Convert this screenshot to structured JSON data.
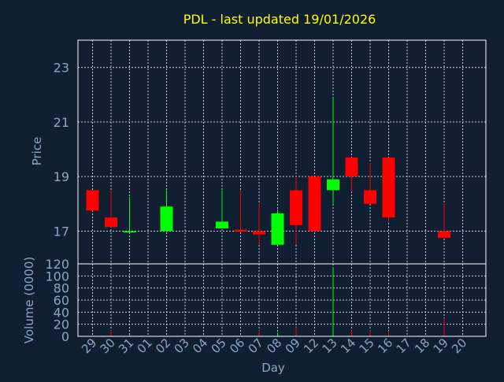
{
  "colors": {
    "background": "#0f1e30",
    "frame": "#ffffff",
    "grid": "#c8c8c8",
    "axis_text": "#8aa6c8",
    "title": "#ffff00",
    "up": "#00ff00",
    "down": "#ff0000"
  },
  "chart_data": [
    {
      "type": "candlestick",
      "title": "PDL - last updated 19/01/2026",
      "ylabel": "Price",
      "ylim": [
        15.8,
        24.0
      ],
      "yticks": [
        17,
        19,
        21,
        23
      ],
      "grid": true,
      "categories": [
        "29",
        "30",
        "31",
        "01",
        "02",
        "03",
        "04",
        "05",
        "06",
        "07",
        "08",
        "09",
        "12",
        "13",
        "14",
        "15",
        "16",
        "17",
        "18",
        "19",
        "20"
      ],
      "candles": [
        {
          "day": "29",
          "open": 18.5,
          "high": 18.5,
          "low": 17.75,
          "close": 17.75
        },
        {
          "day": "30",
          "open": 17.5,
          "high": 18.5,
          "low": 17.15,
          "close": 17.15
        },
        {
          "day": "31",
          "open": 16.95,
          "high": 18.25,
          "low": 16.95,
          "close": 17.0
        },
        {
          "day": "02",
          "open": 17.0,
          "high": 18.5,
          "low": 17.0,
          "close": 17.9
        },
        {
          "day": "05",
          "open": 17.1,
          "high": 18.5,
          "low": 17.1,
          "close": 17.35
        },
        {
          "day": "06",
          "open": 17.05,
          "high": 18.5,
          "low": 16.95,
          "close": 16.98
        },
        {
          "day": "07",
          "open": 17.0,
          "high": 18.0,
          "low": 16.5,
          "close": 16.88
        },
        {
          "day": "08",
          "open": 16.5,
          "high": 17.8,
          "low": 16.5,
          "close": 17.65
        },
        {
          "day": "09",
          "open": 18.5,
          "high": 19.0,
          "low": 16.5,
          "close": 17.22
        },
        {
          "day": "12",
          "open": 19.0,
          "high": 19.0,
          "low": 17.0,
          "close": 17.0
        },
        {
          "day": "13",
          "open": 18.5,
          "high": 21.9,
          "low": 18.0,
          "close": 18.9
        },
        {
          "day": "14",
          "open": 19.7,
          "high": 19.7,
          "low": 18.5,
          "close": 19.0
        },
        {
          "day": "15",
          "open": 18.5,
          "high": 19.5,
          "low": 18.0,
          "close": 18.0
        },
        {
          "day": "16",
          "open": 19.7,
          "high": 19.7,
          "low": 17.35,
          "close": 17.5
        },
        {
          "day": "19",
          "open": 17.0,
          "high": 18.0,
          "low": 16.75,
          "close": 16.75
        }
      ]
    },
    {
      "type": "bar",
      "ylabel": "Volume (0000)",
      "xlabel": "Day",
      "ylim": [
        0,
        120
      ],
      "yticks": [
        0,
        20,
        40,
        60,
        80,
        100,
        120
      ],
      "grid": true,
      "categories": [
        "29",
        "30",
        "31",
        "01",
        "02",
        "03",
        "04",
        "05",
        "06",
        "07",
        "08",
        "09",
        "12",
        "13",
        "14",
        "15",
        "16",
        "17",
        "18",
        "19",
        "20"
      ],
      "values": [
        {
          "day": "30",
          "value": 10,
          "direction": "down"
        },
        {
          "day": "31",
          "value": 2,
          "direction": "up"
        },
        {
          "day": "07",
          "value": 10,
          "direction": "down"
        },
        {
          "day": "08",
          "value": 6,
          "direction": "up"
        },
        {
          "day": "09",
          "value": 15,
          "direction": "down"
        },
        {
          "day": "13",
          "value": 115,
          "direction": "up"
        },
        {
          "day": "14",
          "value": 10,
          "direction": "down"
        },
        {
          "day": "15",
          "value": 10,
          "direction": "down"
        },
        {
          "day": "16",
          "value": 9,
          "direction": "down"
        },
        {
          "day": "19",
          "value": 30,
          "direction": "down"
        }
      ]
    }
  ]
}
